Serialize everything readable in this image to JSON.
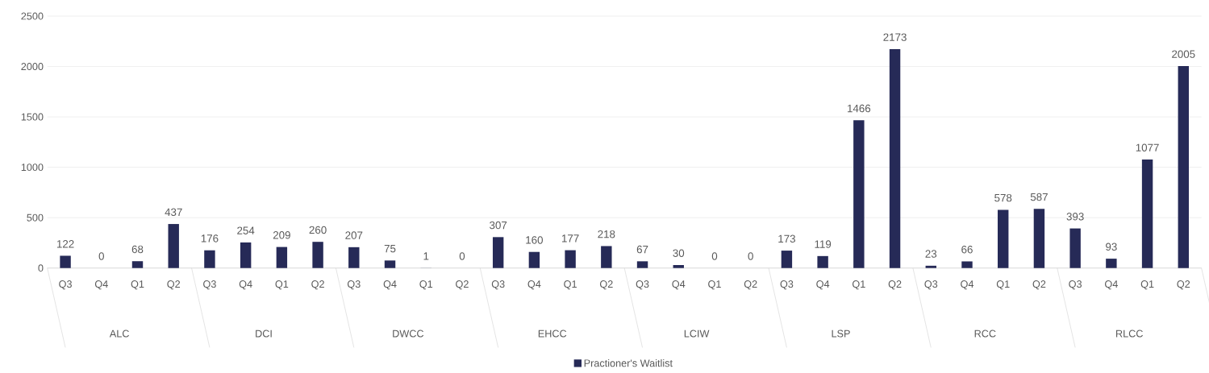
{
  "chart_data": {
    "type": "bar",
    "categories": [
      "Q3",
      "Q4",
      "Q1",
      "Q2",
      "Q3",
      "Q4",
      "Q1",
      "Q2",
      "Q3",
      "Q4",
      "Q1",
      "Q2",
      "Q3",
      "Q4",
      "Q1",
      "Q2",
      "Q3",
      "Q4",
      "Q1",
      "Q2",
      "Q3",
      "Q4",
      "Q1",
      "Q2",
      "Q3",
      "Q4",
      "Q1",
      "Q2",
      "Q3",
      "Q4",
      "Q1",
      "Q2"
    ],
    "annotations": [
      "ALC",
      "DCI",
      "DWCC",
      "EHCC",
      "LCIW",
      "LSP",
      "RCC",
      "RLCC"
    ],
    "series": [
      {
        "name": "Practioner's Waitlist",
        "color": "#262a57",
        "values": [
          122,
          0,
          68,
          437,
          176,
          254,
          209,
          260,
          207,
          75,
          1,
          0,
          307,
          160,
          177,
          218,
          67,
          30,
          0,
          0,
          173,
          119,
          1466,
          2173,
          23,
          66,
          578,
          587,
          393,
          93,
          1077,
          2005
        ]
      }
    ],
    "ylim": [
      0,
      2500
    ],
    "yticks": [
      0,
      500,
      1000,
      1500,
      2000,
      2500
    ],
    "grid": "y",
    "legend": "bottom",
    "data_labels": true
  }
}
